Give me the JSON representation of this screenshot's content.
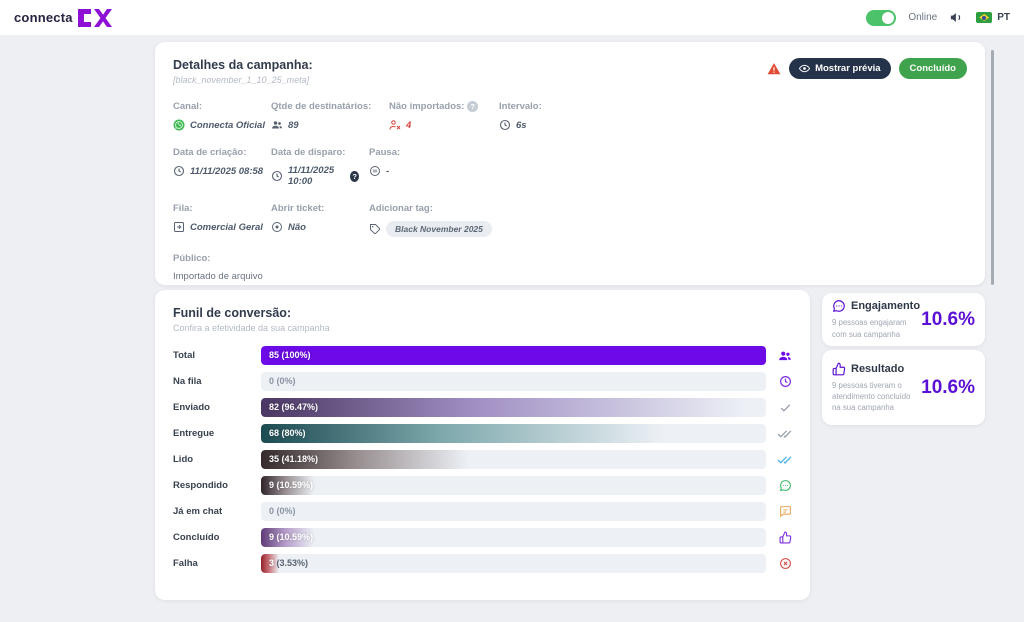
{
  "colors": {
    "accent_purple": "#6d0be8",
    "percent_purple": "#5c10d4",
    "status_green": "#3fa24c",
    "toggle_green": "#4cc36a",
    "dark_button": "#25334a",
    "warning_red": "#e14b33",
    "track_gray": "#edf1f6"
  },
  "header": {
    "logo_text": "connecta",
    "logo_mark": "CX",
    "online_label": "Online",
    "language": "PT"
  },
  "campaign": {
    "title": "Detalhes da campanha:",
    "subtitle": "[black_november_1_10_25_meta]",
    "preview_button": "Mostrar prévia",
    "status_badge": "Concluído",
    "fields": {
      "canal": {
        "label": "Canal:",
        "value": "Connecta Oficial",
        "icon": "whatsapp-icon"
      },
      "qtde": {
        "label": "Qtde de destinatários:",
        "value": "89",
        "icon": "users-icon"
      },
      "nao_importados": {
        "label": "Não importados:",
        "value": "4",
        "icon": "user-x-icon"
      },
      "intervalo": {
        "label": "Intervalo:",
        "value": "6s",
        "icon": "clock-icon"
      },
      "criacao": {
        "label": "Data de criação:",
        "value": "11/11/2025 08:58",
        "icon": "clock-icon"
      },
      "disparo": {
        "label": "Data de disparo:",
        "value": "11/11/2025 10:00",
        "icon": "clock-icon"
      },
      "pausa": {
        "label": "Pausa:",
        "value": "-",
        "icon": "pause-circle-icon"
      },
      "fila": {
        "label": "Fila:",
        "value": "Comercial Geral",
        "icon": "queue-icon"
      },
      "ticket": {
        "label": "Abrir ticket:",
        "value": "Não",
        "icon": "record-circle-icon"
      },
      "tag": {
        "label": "Adicionar tag:",
        "value": "Black November 2025",
        "icon": "tag-icon"
      },
      "publico": {
        "label": "Público:",
        "value": "Importado de arquivo"
      }
    },
    "help_mark": "?"
  },
  "funnel": {
    "title": "Funil de conversão:",
    "subtitle": "Confira a efetividade da sua campanha",
    "rows": [
      {
        "label": "Total",
        "value_text": "85 (100%)",
        "pct": 100,
        "solid": "#6d0be8",
        "icon": "group-icon",
        "icon_color": "#6d0be8"
      },
      {
        "label": "Na fila",
        "value_text": "0 (0%)",
        "pct": 0,
        "icon": "clock-icon",
        "icon_color": "#7c2ce4"
      },
      {
        "label": "Enviado",
        "value_text": "82 (96.47%)",
        "pct": 96.47,
        "from": "#4a3763",
        "mid": "#a291c5",
        "icon": "check-icon",
        "icon_color": "#9aa3ad"
      },
      {
        "label": "Entregue",
        "value_text": "68 (80%)",
        "pct": 80,
        "from": "#1c4b52",
        "mid": "#7ea9ad",
        "icon": "double-check-icon",
        "icon_color": "#9aa3ad"
      },
      {
        "label": "Lido",
        "value_text": "35 (41.18%)",
        "pct": 41.18,
        "from": "#342a2c",
        "mid": "#968c8e",
        "icon": "double-check-icon",
        "icon_color": "#4fb3e8"
      },
      {
        "label": "Respondido",
        "value_text": "9 (10.59%)",
        "pct": 10.59,
        "from": "#30242b",
        "mid": "#978d91",
        "icon": "chat-bubble-icon",
        "icon_color": "#3cb86a"
      },
      {
        "label": "Já em chat",
        "value_text": "0 (0%)",
        "pct": 0,
        "icon": "chat-square-icon",
        "icon_color": "#e8a558"
      },
      {
        "label": "Concluído",
        "value_text": "9 (10.59%)",
        "pct": 10.59,
        "from": "#5e3b76",
        "mid": "#b49bc9",
        "icon": "thumbs-up-icon",
        "icon_color": "#7c2ce4"
      },
      {
        "label": "Falha",
        "num": "3",
        "pct_text": "(3.53%)",
        "pct": 3.53,
        "from": "#96202c",
        "mid": "#c9747b",
        "icon": "x-circle-icon",
        "icon_color": "#d44a42"
      }
    ]
  },
  "engagement_card": {
    "title": "Engajamento",
    "description": "9 pessoas engajaram com sua campanha",
    "percent": "10.6%",
    "icon": "chat-bubble-icon"
  },
  "result_card": {
    "title": "Resultado",
    "description": "9 pessoas tiveram o atendimento concluído na sua campanha",
    "percent": "10.6%",
    "icon": "thumbs-up-icon"
  }
}
